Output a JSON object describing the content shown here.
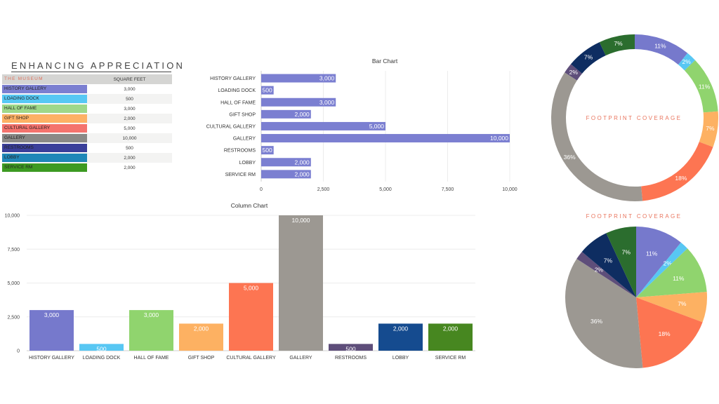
{
  "table": {
    "title": "ENHANCING APPRECIATION",
    "header": {
      "col1": "THE MUSEUM",
      "col2": "SQUARE FEET"
    },
    "rows": [
      {
        "name": "HISTORY GALLERY",
        "value": "3,000",
        "color": "#7b7fd1"
      },
      {
        "name": "LOADING DOCK",
        "value": "500",
        "color": "#56c8f4"
      },
      {
        "name": "HALL OF FAME",
        "value": "3,000",
        "color": "#9ed88a"
      },
      {
        "name": "GIFT SHOP",
        "value": "2,000",
        "color": "#fdb165"
      },
      {
        "name": "CULTURAL GALLERY",
        "value": "5,000",
        "color": "#f4736d"
      },
      {
        "name": "GALLERY",
        "value": "10,000",
        "color": "#8a8986"
      },
      {
        "name": "RESTROOMS",
        "value": "500",
        "color": "#3a3f9a"
      },
      {
        "name": "LOBBY",
        "value": "2,000",
        "color": "#1f87b8"
      },
      {
        "name": "SERVICE RM",
        "value": "2,000",
        "color": "#3d9a22"
      }
    ]
  },
  "chart_data": [
    {
      "type": "bar",
      "title": "Bar Chart",
      "categories": [
        "HISTORY GALLERY",
        "LOADING DOCK",
        "HALL OF FAME",
        "GIFT SHOP",
        "CULTURAL GALLERY",
        "GALLERY",
        "RESTROOMS",
        "LOBBY",
        "SERVICE RM"
      ],
      "values": [
        3000,
        500,
        3000,
        2000,
        5000,
        10000,
        500,
        2000,
        2000
      ],
      "value_labels": [
        "3,000",
        "500",
        "3,000",
        "2,000",
        "5,000",
        "10,000",
        "500",
        "2,000",
        "2,000"
      ],
      "xlim": [
        0,
        10000
      ],
      "ticks": [
        "0",
        "2,500",
        "5,000",
        "7,500",
        "10,000"
      ],
      "color": "#7b7fd1",
      "grid": true
    },
    {
      "type": "bar",
      "title": "Column Chart",
      "categories": [
        "HISTORY GALLERY",
        "LOADING DOCK",
        "HALL OF FAME",
        "GIFT SHOP",
        "CULTURAL GALLERY",
        "GALLERY",
        "RESTROOMS",
        "LOBBY",
        "SERVICE RM"
      ],
      "values": [
        3000,
        500,
        3000,
        2000,
        5000,
        10000,
        500,
        2000,
        2000
      ],
      "value_labels": [
        "3,000",
        "500",
        "3,000",
        "2,000",
        "5,000",
        "10,000",
        "500",
        "2,000",
        "2,000"
      ],
      "ylim": [
        0,
        10000
      ],
      "ticks": [
        "0",
        "2,500",
        "5,000",
        "7,500",
        "10,000"
      ],
      "colors": [
        "#7679cc",
        "#58c7f3",
        "#90d46e",
        "#fdb162",
        "#fd7552",
        "#9c9892",
        "#5e4e7a",
        "#154b8f",
        "#478720"
      ],
      "grid": true
    },
    {
      "type": "pie",
      "style": "donut",
      "title": "FOOTPRINT COVERAGE",
      "start_angle": 0,
      "slices": [
        {
          "value": 11,
          "label": "11%",
          "color": "#7679cc"
        },
        {
          "value": 2,
          "label": "2%",
          "color": "#58c7f3"
        },
        {
          "value": 11,
          "label": "11%",
          "color": "#90d46e"
        },
        {
          "value": 7,
          "label": "7%",
          "color": "#fdb162"
        },
        {
          "value": 18,
          "label": "18%",
          "color": "#fd7552"
        },
        {
          "value": 36,
          "label": "36%",
          "color": "#9c9892"
        },
        {
          "value": 2,
          "label": "2%",
          "color": "#5e4e7a"
        },
        {
          "value": 7,
          "label": "7%",
          "color": "#0e2d61"
        },
        {
          "value": 7,
          "label": "7%",
          "color": "#2b6d2e"
        }
      ]
    },
    {
      "type": "pie",
      "title": "FOOTPRINT COVERAGE",
      "start_angle": 0,
      "slices": [
        {
          "value": 11,
          "label": "11%",
          "color": "#7679cc"
        },
        {
          "value": 2,
          "label": "2%",
          "color": "#58c7f3"
        },
        {
          "value": 11,
          "label": "11%",
          "color": "#90d46e"
        },
        {
          "value": 7,
          "label": "7%",
          "color": "#fdb162"
        },
        {
          "value": 18,
          "label": "18%",
          "color": "#fd7552"
        },
        {
          "value": 36,
          "label": "36%",
          "color": "#9c9892"
        },
        {
          "value": 2,
          "label": "2%",
          "color": "#5e4e7a"
        },
        {
          "value": 7,
          "label": "7%",
          "color": "#0e2d61"
        },
        {
          "value": 7,
          "label": "7%",
          "color": "#2b6d2e"
        }
      ]
    }
  ]
}
